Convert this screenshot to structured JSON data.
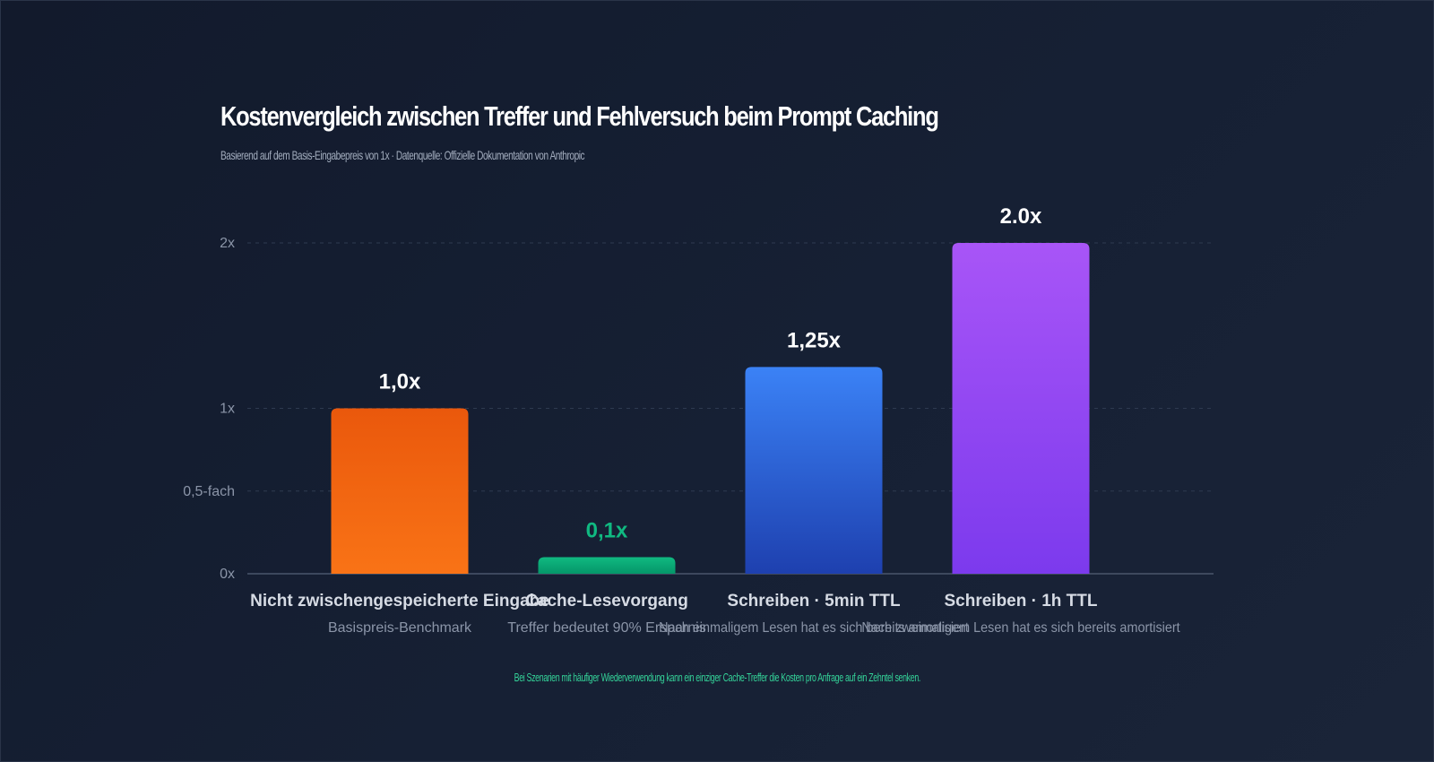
{
  "chart_data": {
    "type": "bar",
    "title": "Kostenvergleich zwischen Treffer und Fehlversuch beim Prompt Caching",
    "subtitle": "Basierend auf dem Basis-Eingabepreis von 1x · Datenquelle: Offizielle Dokumentation von Anthropic",
    "categories": [
      "Nicht zwischengespeicherte Eingabe",
      "Cache-Lesevorgang",
      "Schreiben · 5min TTL",
      "Schreiben · 1h TTL"
    ],
    "sublabels": [
      "Basispreis-Benchmark",
      "Treffer bedeutet 90% Ersparnis",
      "Nach einmaligem Lesen hat es sich bereits amortisiert",
      "Nach zweimaligem Lesen hat es sich bereits amortisiert"
    ],
    "values": [
      1.0,
      0.1,
      1.25,
      2.0
    ],
    "value_labels": [
      "1,0x",
      "0,1x",
      "1,25x",
      "2.0x"
    ],
    "yticks": [
      {
        "value": 0,
        "label": "0x"
      },
      {
        "value": 0.5,
        "label": "0,5-fach"
      },
      {
        "value": 1,
        "label": "1x"
      },
      {
        "value": 2,
        "label": "2x"
      }
    ],
    "ylim": [
      0,
      2
    ],
    "grid": true,
    "legend": "none",
    "colors": [
      {
        "top": "#ea580c",
        "bottom": "#f97316"
      },
      {
        "top": "#10b981",
        "bottom": "#059669"
      },
      {
        "top": "#3b82f6",
        "bottom": "#1e40af"
      },
      {
        "top": "#a855f7",
        "bottom": "#7c3aed"
      }
    ],
    "value_label_colors": [
      "#ffffff",
      "#10b981",
      "#ffffff",
      "#ffffff"
    ]
  },
  "footnote": "Bei Szenarien mit häufiger Wiederverwendung kann ein einziger Cache-Treffer die Kosten pro Anfrage auf ein Zehntel senken."
}
